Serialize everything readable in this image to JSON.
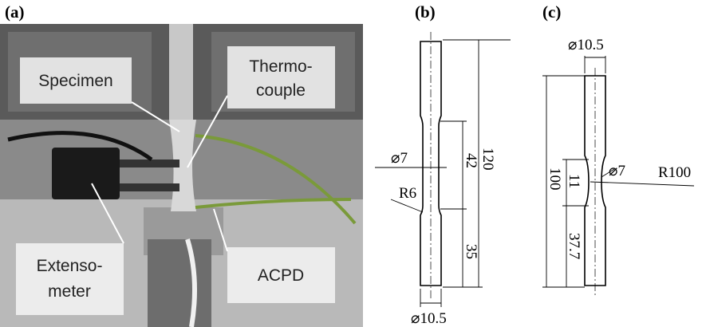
{
  "panels": {
    "a": {
      "caption": "(a)",
      "labels": {
        "specimen": "Specimen",
        "thermocouple_1": "Thermo-",
        "thermocouple_2": "couple",
        "extensometer_1": "Extenso-",
        "extensometer_2": "meter",
        "acpd": "ACPD"
      }
    },
    "b": {
      "caption": "(b)",
      "diameter_gauge": "⌀7",
      "gauge_length": "42",
      "total_length": "120",
      "radius": "R6",
      "grip_length": "35",
      "diameter_grip": "⌀10.5"
    },
    "c": {
      "caption": "(c)",
      "diameter_grip": "⌀10.5",
      "total_length": "100",
      "gauge_length": "11",
      "diameter_gauge": "⌀7",
      "radius": "R100",
      "grip_length": "37.7"
    }
  }
}
